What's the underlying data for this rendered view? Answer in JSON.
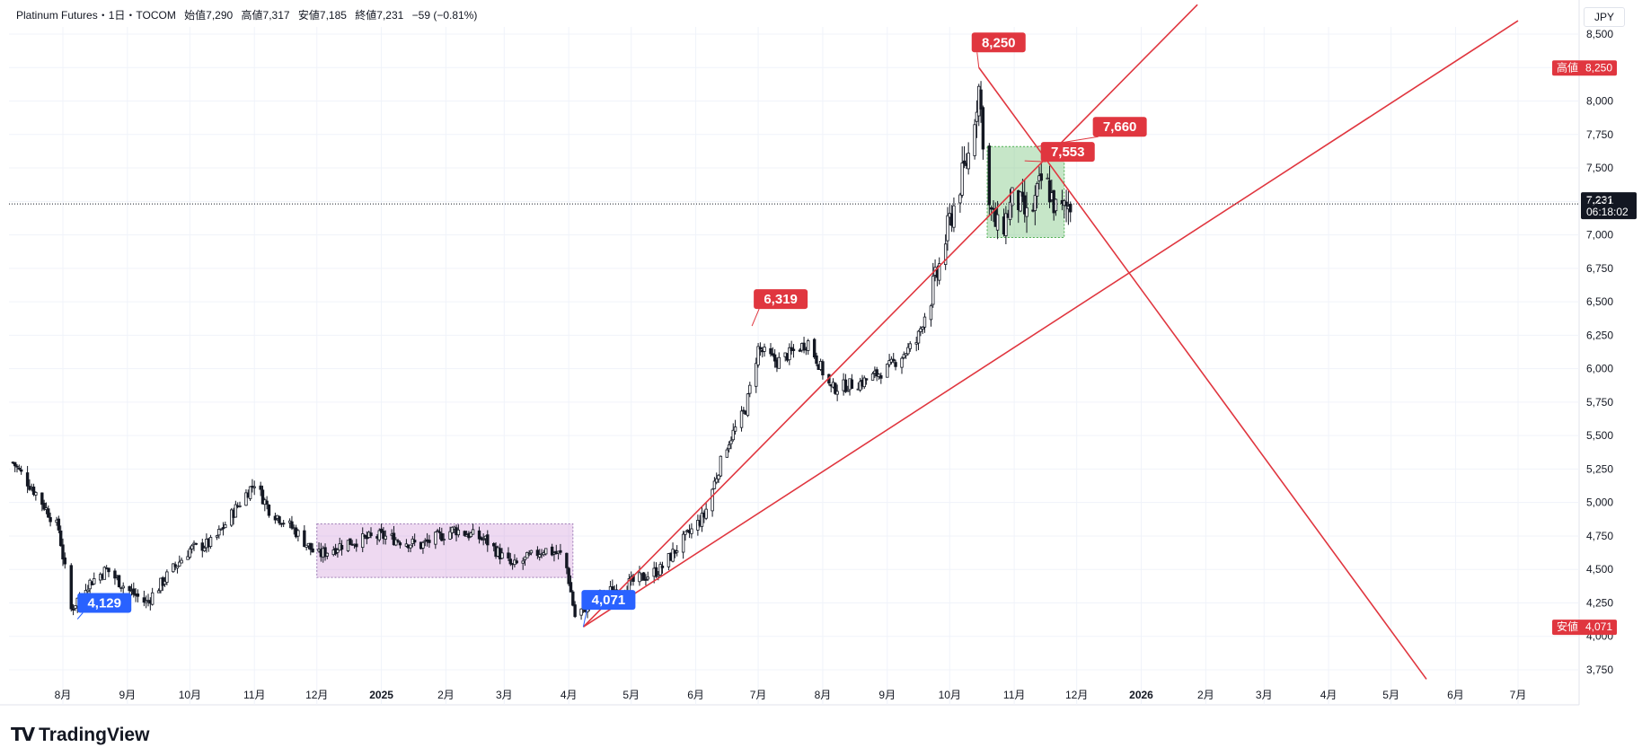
{
  "header": {
    "symbol": "Platinum Futures・1日・TOCOM",
    "open": "始值7,290",
    "high": "高値7,317",
    "low": "安値7,185",
    "close": "終値7,231",
    "change": "−59 (−0.81%)"
  },
  "currency_label": "JPY",
  "brand": {
    "logo": "𝗧𝗩",
    "name": "TradingView"
  },
  "colors": {
    "red": "#e0363f",
    "blue": "#2962ff",
    "pink_box": "#e1bee7",
    "green_box": "#a5d6a7",
    "candle": "#131722"
  },
  "chart_data": {
    "type": "candlestick",
    "title": "",
    "ylabel": "",
    "xlabel": "",
    "ylim": [
      3600,
      8600
    ],
    "y_ticks": [
      "8,500",
      "8,250",
      "8,000",
      "7,750",
      "7,500",
      "7,250",
      "7,000",
      "6,750",
      "6,500",
      "6,250",
      "6,000",
      "5,750",
      "5,500",
      "5,250",
      "5,000",
      "4,750",
      "4,500",
      "4,250",
      "4,000",
      "3,750"
    ],
    "x_ticks": [
      {
        "label": "8月",
        "date": "2024-08-01"
      },
      {
        "label": "9月",
        "date": "2024-09-01"
      },
      {
        "label": "10月",
        "date": "2024-10-01"
      },
      {
        "label": "11月",
        "date": "2024-11-01"
      },
      {
        "label": "12月",
        "date": "2024-12-01"
      },
      {
        "label": "2025",
        "date": "2025-01-01",
        "bold": true
      },
      {
        "label": "2月",
        "date": "2025-02-01"
      },
      {
        "label": "3月",
        "date": "2025-03-01"
      },
      {
        "label": "4月",
        "date": "2025-04-01"
      },
      {
        "label": "5月",
        "date": "2025-05-01"
      },
      {
        "label": "6月",
        "date": "2025-06-01"
      },
      {
        "label": "7月",
        "date": "2025-07-01"
      },
      {
        "label": "8月",
        "date": "2025-08-01"
      },
      {
        "label": "9月",
        "date": "2025-09-01"
      },
      {
        "label": "10月",
        "date": "2025-10-01"
      },
      {
        "label": "11月",
        "date": "2025-11-01"
      },
      {
        "label": "12月",
        "date": "2025-12-01"
      },
      {
        "label": "2026",
        "date": "2026-01-01",
        "bold": true
      },
      {
        "label": "2月",
        "date": "2026-02-01"
      },
      {
        "label": "3月",
        "date": "2026-03-01"
      },
      {
        "label": "4月",
        "date": "2026-04-01"
      },
      {
        "label": "5月",
        "date": "2026-05-01"
      },
      {
        "label": "6月",
        "date": "2026-06-01"
      },
      {
        "label": "7月",
        "date": "2026-07-01"
      }
    ],
    "price_path": [
      {
        "date": "2024-07-08",
        "close": 5300
      },
      {
        "date": "2024-07-20",
        "close": 5050
      },
      {
        "date": "2024-07-30",
        "close": 4800
      },
      {
        "date": "2024-08-05",
        "close": 4200
      },
      {
        "date": "2024-08-12",
        "close": 4380
      },
      {
        "date": "2024-08-22",
        "close": 4500
      },
      {
        "date": "2024-09-01",
        "close": 4350
      },
      {
        "date": "2024-09-10",
        "close": 4250
      },
      {
        "date": "2024-09-20",
        "close": 4450
      },
      {
        "date": "2024-10-01",
        "close": 4650
      },
      {
        "date": "2024-10-12",
        "close": 4700
      },
      {
        "date": "2024-10-25",
        "close": 5000
      },
      {
        "date": "2024-11-01",
        "close": 5150
      },
      {
        "date": "2024-11-08",
        "close": 4950
      },
      {
        "date": "2024-11-20",
        "close": 4800
      },
      {
        "date": "2024-12-01",
        "close": 4600
      },
      {
        "date": "2024-12-15",
        "close": 4700
      },
      {
        "date": "2025-01-01",
        "close": 4750
      },
      {
        "date": "2025-01-20",
        "close": 4680
      },
      {
        "date": "2025-02-05",
        "close": 4800
      },
      {
        "date": "2025-02-20",
        "close": 4720
      },
      {
        "date": "2025-03-05",
        "close": 4520
      },
      {
        "date": "2025-03-20",
        "close": 4650
      },
      {
        "date": "2025-03-30",
        "close": 4600
      },
      {
        "date": "2025-04-04",
        "close": 4150
      },
      {
        "date": "2025-04-15",
        "close": 4300
      },
      {
        "date": "2025-05-01",
        "close": 4400
      },
      {
        "date": "2025-05-15",
        "close": 4500
      },
      {
        "date": "2025-05-25",
        "close": 4700
      },
      {
        "date": "2025-06-05",
        "close": 4900
      },
      {
        "date": "2025-06-15",
        "close": 5400
      },
      {
        "date": "2025-06-25",
        "close": 5700
      },
      {
        "date": "2025-07-01",
        "close": 6150
      },
      {
        "date": "2025-07-10",
        "close": 6050
      },
      {
        "date": "2025-07-25",
        "close": 6200
      },
      {
        "date": "2025-08-05",
        "close": 5850
      },
      {
        "date": "2025-08-20",
        "close": 5900
      },
      {
        "date": "2025-09-01",
        "close": 6000
      },
      {
        "date": "2025-09-15",
        "close": 6200
      },
      {
        "date": "2025-09-25",
        "close": 6700
      },
      {
        "date": "2025-10-01",
        "close": 7100
      },
      {
        "date": "2025-10-10",
        "close": 7600
      },
      {
        "date": "2025-10-15",
        "close": 8100
      },
      {
        "date": "2025-10-20",
        "close": 7200
      },
      {
        "date": "2025-10-25",
        "close": 7000
      },
      {
        "date": "2025-11-01",
        "close": 7300
      },
      {
        "date": "2025-11-08",
        "close": 7100
      },
      {
        "date": "2025-11-15",
        "close": 7450
      },
      {
        "date": "2025-11-22",
        "close": 7150
      },
      {
        "date": "2025-11-28",
        "close": 7231
      }
    ],
    "current_price": {
      "value": 7231,
      "label": "7,231",
      "countdown": "06:18:02"
    },
    "side_labels": [
      {
        "name": "高値",
        "label": "8,250",
        "value": 8250
      },
      {
        "name": "安値",
        "label": "4,071",
        "value": 4071
      }
    ],
    "annotations": [
      {
        "label": "8,250",
        "value": 8250,
        "date": "2025-10-15",
        "color": "red"
      },
      {
        "label": "7,660",
        "value": 7660,
        "date": "2025-11-12",
        "color": "red"
      },
      {
        "label": "7,553",
        "value": 7553,
        "date": "2025-11-06",
        "color": "red"
      },
      {
        "label": "6,319",
        "value": 6319,
        "date": "2025-06-28",
        "color": "red"
      },
      {
        "label": "4,129",
        "value": 4129,
        "date": "2024-08-08",
        "color": "blue"
      },
      {
        "label": "4,071",
        "value": 4071,
        "date": "2025-04-08",
        "color": "blue"
      }
    ],
    "boxes": [
      {
        "name": "consolidation-range-2025",
        "from": "2024-12-01",
        "to": "2025-04-03",
        "top": 4840,
        "bottom": 4440,
        "color": "pink"
      },
      {
        "name": "consolidation-range-late-2025",
        "from": "2025-10-19",
        "to": "2025-11-25",
        "top": 7660,
        "bottom": 6980,
        "color": "green"
      }
    ],
    "trendlines": [
      {
        "from": {
          "date": "2025-04-08",
          "value": 4071
        },
        "to": {
          "date": "2026-01-28",
          "value": 8720
        }
      },
      {
        "from": {
          "date": "2025-04-08",
          "value": 4071
        },
        "to": {
          "date": "2026-07-01",
          "value": 8600
        }
      },
      {
        "from": {
          "date": "2025-10-15",
          "value": 8250
        },
        "to": {
          "date": "2026-05-18",
          "value": 3680
        }
      }
    ]
  }
}
